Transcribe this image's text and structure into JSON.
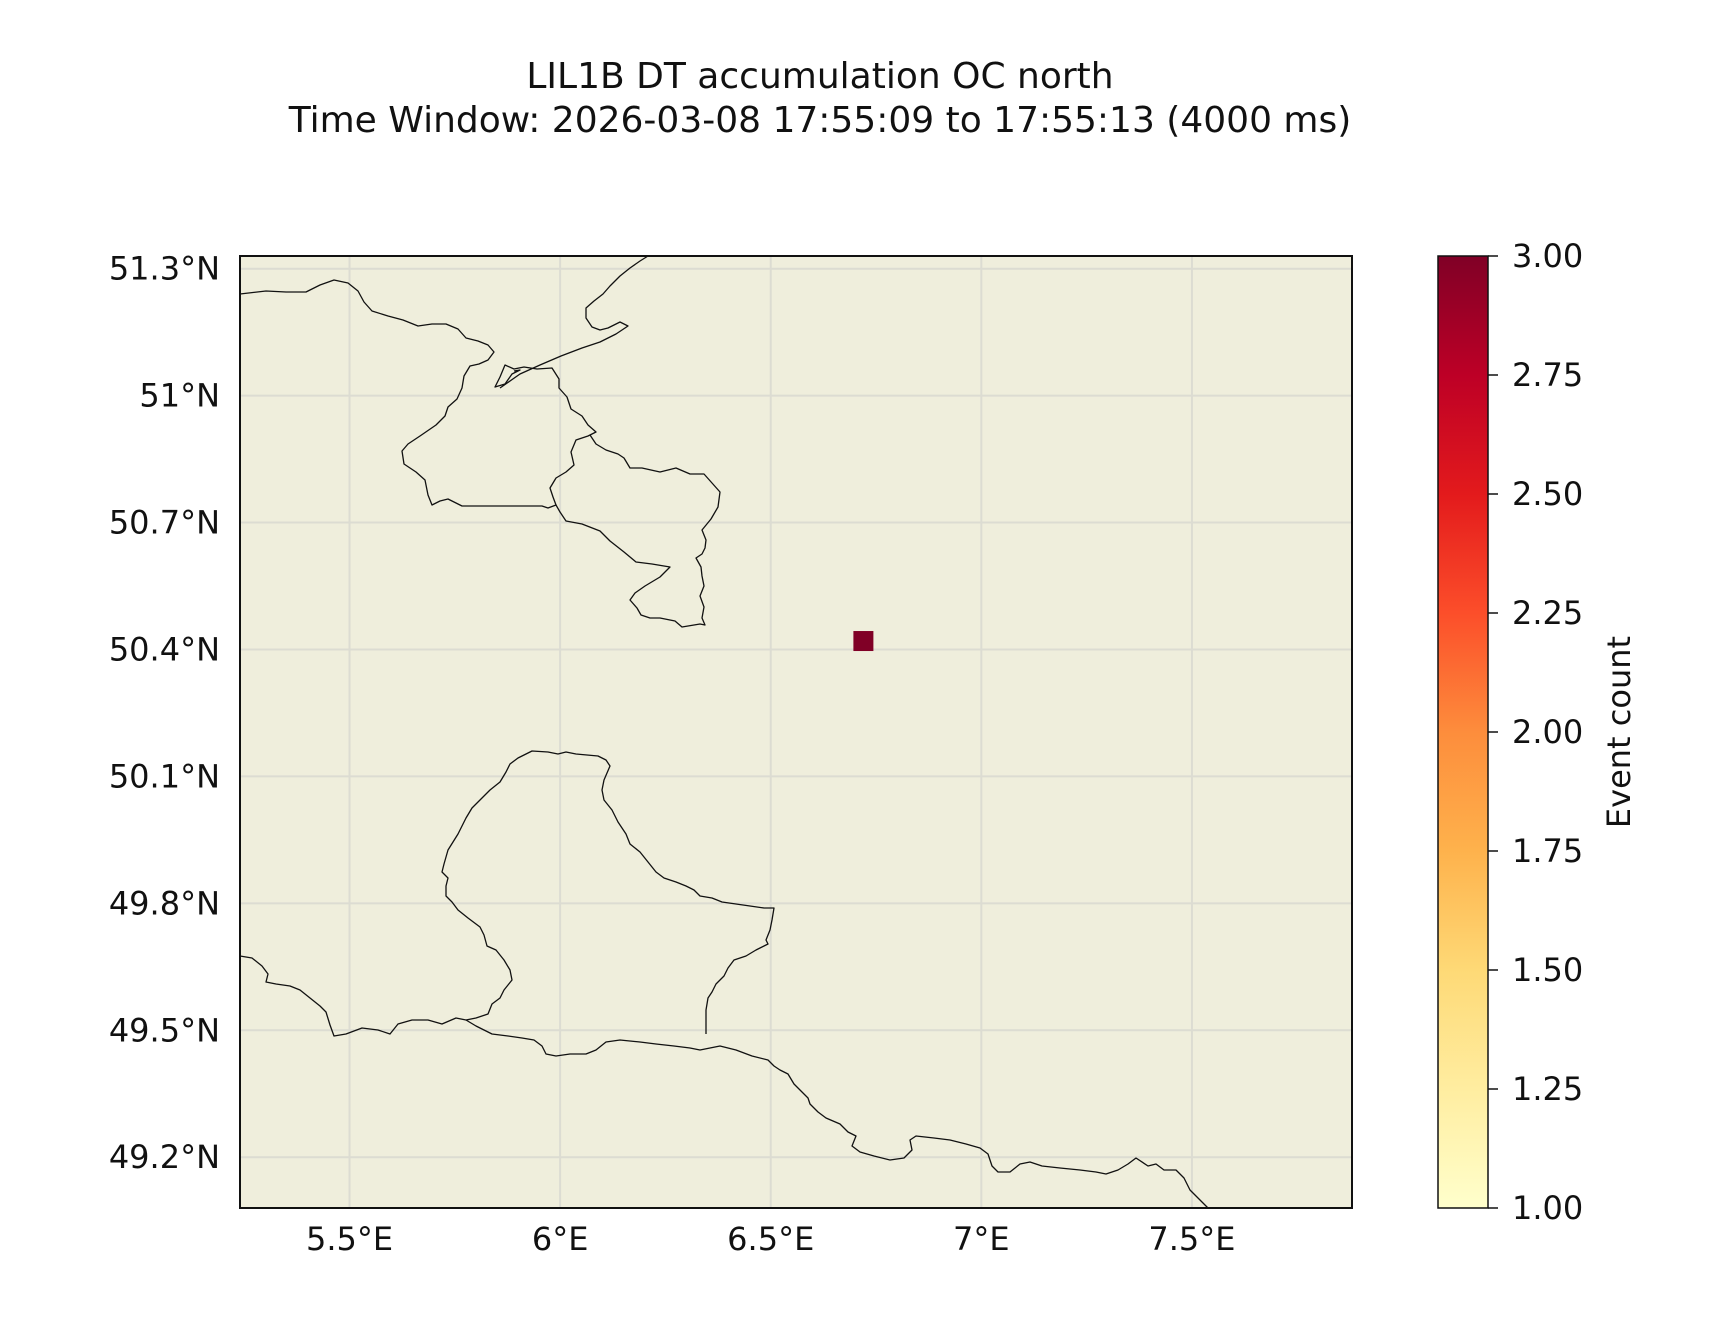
{
  "figure": {
    "title": "LIL1B DT accumulation OC north",
    "subtitle": "Time Window: 2026-03-08 17:55:09 to 17:55:13 (4000 ms)"
  },
  "map": {
    "extent": {
      "lon": [
        5.24,
        7.88
      ],
      "lat": [
        49.08,
        51.33
      ]
    },
    "background_color": "#efeedc",
    "grid_color": "#dcdcd2",
    "border_color": "#111111",
    "grid": true,
    "lon_ticks": [
      {
        "value": 5.5,
        "label": "5.5°E"
      },
      {
        "value": 6.0,
        "label": "6°E"
      },
      {
        "value": 6.5,
        "label": "6.5°E"
      },
      {
        "value": 7.0,
        "label": "7°E"
      },
      {
        "value": 7.5,
        "label": "7.5°E"
      }
    ],
    "lat_ticks": [
      {
        "value": 51.3,
        "label": "51.3°N"
      },
      {
        "value": 51.0,
        "label": "51°N"
      },
      {
        "value": 50.7,
        "label": "50.7°N"
      },
      {
        "value": 50.4,
        "label": "50.4°N"
      },
      {
        "value": 50.1,
        "label": "50.1°N"
      },
      {
        "value": 49.8,
        "label": "49.8°N"
      },
      {
        "value": 49.5,
        "label": "49.5°N"
      },
      {
        "value": 49.2,
        "label": "49.2°N"
      }
    ],
    "events": [
      {
        "lon": 6.72,
        "lat": 50.42,
        "count": 3.0
      }
    ]
  },
  "colorbar": {
    "label": "Event count",
    "range": [
      1.0,
      3.0
    ],
    "colormap": [
      "#ffffcc",
      "#ffeda0",
      "#fed976",
      "#feb24c",
      "#fd8d3c",
      "#fc4e2a",
      "#e31a1c",
      "#bd0026",
      "#800026"
    ],
    "ticks": [
      {
        "value": 1.0,
        "label": "1.00"
      },
      {
        "value": 1.25,
        "label": "1.25"
      },
      {
        "value": 1.5,
        "label": "1.50"
      },
      {
        "value": 1.75,
        "label": "1.75"
      },
      {
        "value": 2.0,
        "label": "2.00"
      },
      {
        "value": 2.25,
        "label": "2.25"
      },
      {
        "value": 2.5,
        "label": "2.50"
      },
      {
        "value": 2.75,
        "label": "2.75"
      },
      {
        "value": 3.0,
        "label": "3.00"
      }
    ]
  }
}
